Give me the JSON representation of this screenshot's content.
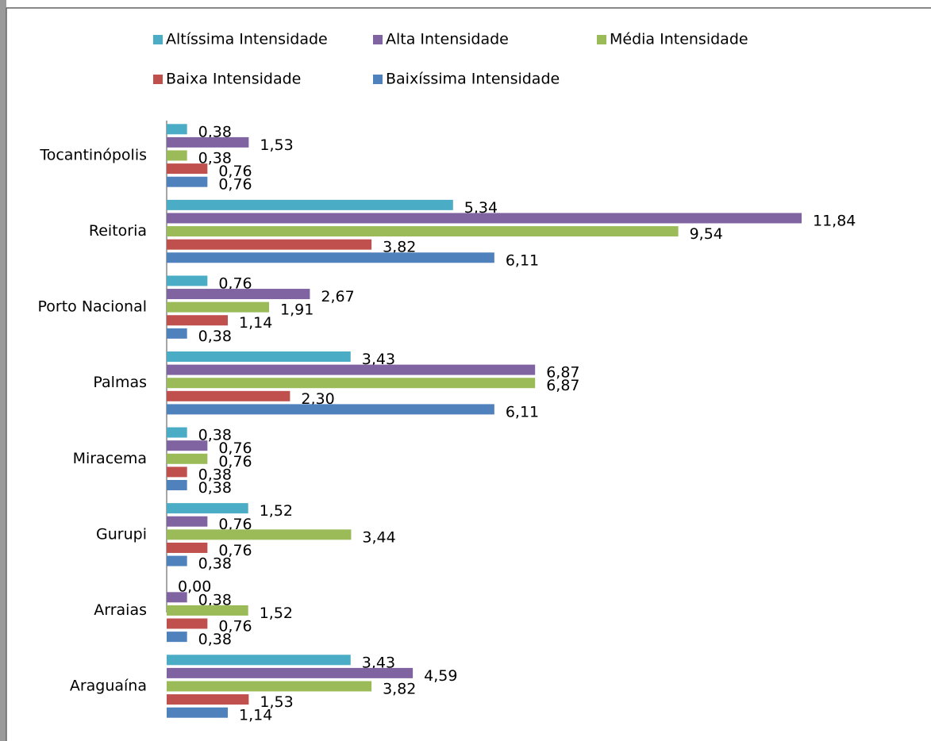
{
  "chart_data": {
    "type": "bar",
    "orientation": "horizontal",
    "categories": [
      "Araguaína",
      "Arraias",
      "Gurupi",
      "Miracema",
      "Palmas",
      "Porto Nacional",
      "Reitoria",
      "Tocantinópolis"
    ],
    "series": [
      {
        "name": "Altíssima Intensidade",
        "color": "#4bacc6",
        "values": [
          3.43,
          0.0,
          1.52,
          0.38,
          3.43,
          0.76,
          5.34,
          0.38
        ],
        "value_labels": [
          "3,43",
          "0,00",
          "1,52",
          "0,38",
          "3,43",
          "0,76",
          "5,34",
          "0,38"
        ]
      },
      {
        "name": "Alta Intensidade",
        "color": "#8064a2",
        "values": [
          4.59,
          0.38,
          0.76,
          0.76,
          6.87,
          2.67,
          11.84,
          1.53
        ],
        "value_labels": [
          "4,59",
          "0,38",
          "0,76",
          "0,76",
          "6,87",
          "2,67",
          "11,84",
          "1,53"
        ]
      },
      {
        "name": "Média Intensidade",
        "color": "#9bbb59",
        "values": [
          3.82,
          1.52,
          3.44,
          0.76,
          6.87,
          1.91,
          9.54,
          0.38
        ],
        "value_labels": [
          "3,82",
          "1,52",
          "3,44",
          "0,76",
          "6,87",
          "1,91",
          "9,54",
          "0,38"
        ]
      },
      {
        "name": "Baixa Intensidade",
        "color": "#c0504d",
        "values": [
          1.53,
          0.76,
          0.76,
          0.38,
          2.3,
          1.14,
          3.82,
          0.76
        ],
        "value_labels": [
          "1,53",
          "0,76",
          "0,76",
          "0,38",
          "2,30",
          "1,14",
          "3,82",
          "0,76"
        ]
      },
      {
        "name": "Baixíssima Intensidade",
        "color": "#4f81bd",
        "values": [
          1.14,
          0.38,
          0.38,
          0.38,
          6.11,
          0.38,
          6.11,
          0.76
        ],
        "value_labels": [
          "1,14",
          "0,38",
          "0,38",
          "0,38",
          "6,11",
          "0,38",
          "6,11",
          "0,76"
        ]
      }
    ]
  }
}
